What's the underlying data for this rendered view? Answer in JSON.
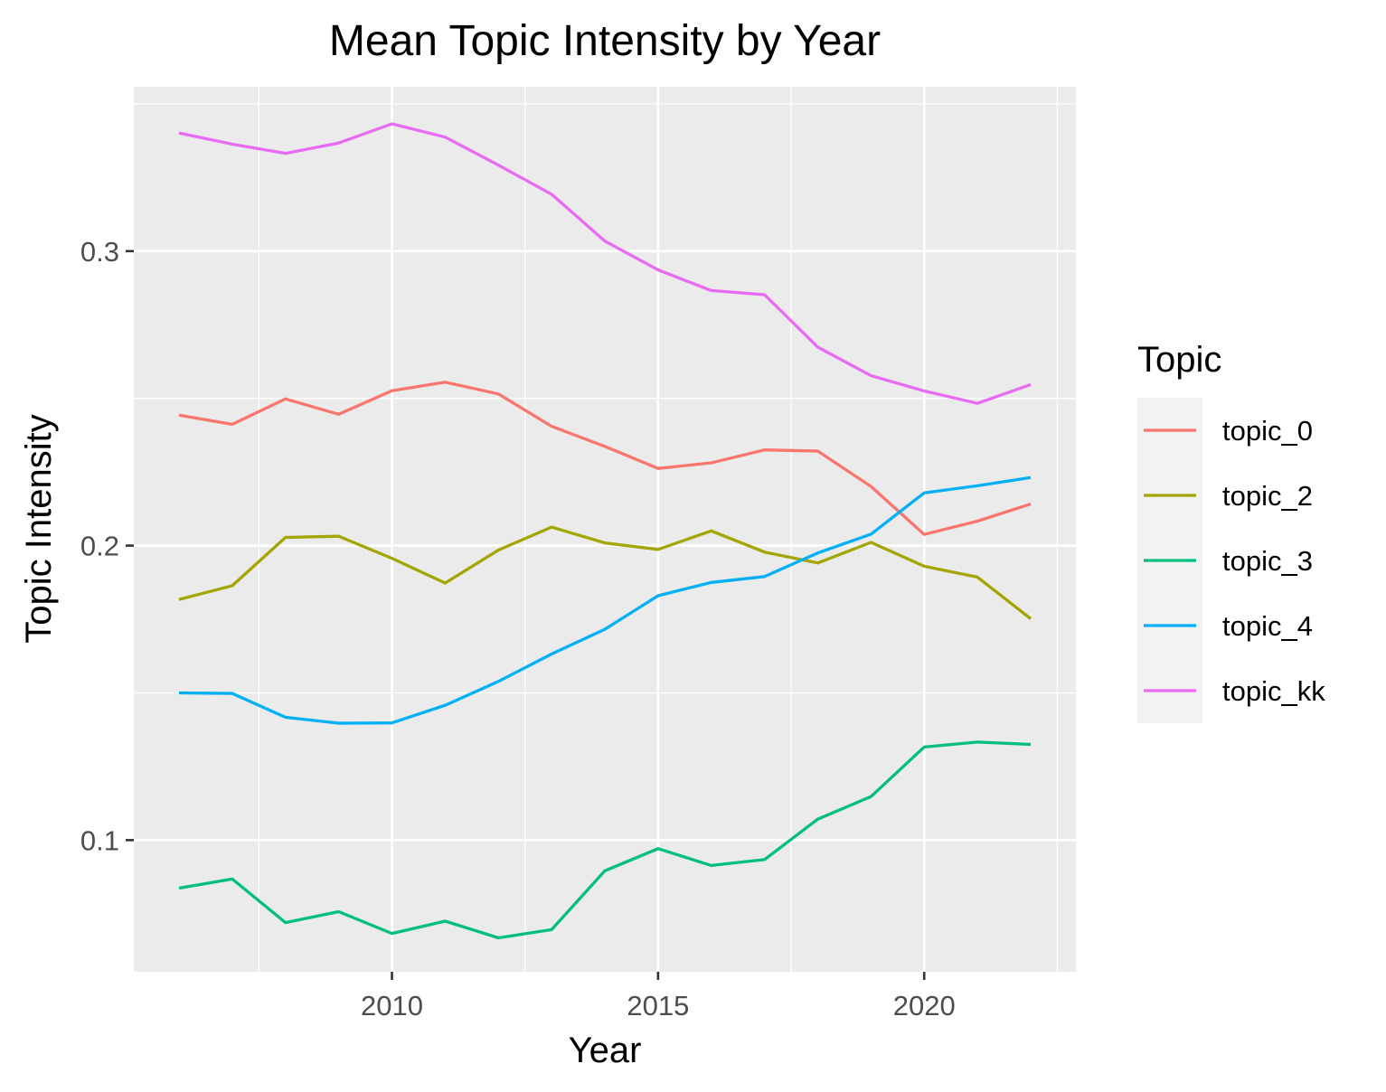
{
  "chart_data": {
    "type": "line",
    "title": "Mean Topic Intensity by Year",
    "xlabel": "Year",
    "ylabel": "Topic Intensity",
    "x": [
      2006,
      2007,
      2008,
      2009,
      2010,
      2011,
      2012,
      2013,
      2014,
      2015,
      2016,
      2017,
      2018,
      2019,
      2020,
      2021,
      2022
    ],
    "xlim": [
      2005.15,
      2022.85
    ],
    "ylim": [
      0.0553,
      0.3558
    ],
    "x_ticks": [
      2010,
      2015,
      2020
    ],
    "x_tick_labels": [
      "2010",
      "2015",
      "2020"
    ],
    "x_minor_ticks": [
      2007.5,
      2012.5,
      2017.5,
      2022.5
    ],
    "y_ticks": [
      0.1,
      0.2,
      0.3
    ],
    "y_tick_labels": [
      "0.1",
      "0.2",
      "0.3"
    ],
    "y_minor_ticks": [
      0.15,
      0.25,
      0.35
    ],
    "grid": true,
    "legend": {
      "title": "Topic",
      "position": "right"
    },
    "series": [
      {
        "name": "topic_0",
        "color": "#F8766D",
        "values": [
          0.2443,
          0.2412,
          0.2498,
          0.2446,
          0.2526,
          0.2555,
          0.2515,
          0.2405,
          0.2337,
          0.2262,
          0.2281,
          0.2325,
          0.2321,
          0.2201,
          0.2038,
          0.2083,
          0.2141
        ]
      },
      {
        "name": "topic_2",
        "color": "#A3A500",
        "values": [
          0.1817,
          0.1864,
          0.2028,
          0.2032,
          0.1957,
          0.1873,
          0.1985,
          0.2063,
          0.2009,
          0.1987,
          0.205,
          0.1978,
          0.1941,
          0.2011,
          0.193,
          0.1893,
          0.1752
        ]
      },
      {
        "name": "topic_3",
        "color": "#00BF7D",
        "values": [
          0.0837,
          0.0868,
          0.072,
          0.0757,
          0.0683,
          0.0725,
          0.0668,
          0.0696,
          0.0896,
          0.0971,
          0.0914,
          0.0934,
          0.1071,
          0.1148,
          0.1316,
          0.1333,
          0.1325
        ]
      },
      {
        "name": "topic_4",
        "color": "#00B0F6",
        "values": [
          0.15,
          0.1498,
          0.1417,
          0.1397,
          0.1398,
          0.1458,
          0.1539,
          0.1632,
          0.1716,
          0.183,
          0.1875,
          0.1895,
          0.1975,
          0.2039,
          0.2179,
          0.2203,
          0.2231
        ]
      },
      {
        "name": "topic_kk",
        "color": "#E76BF3",
        "values": [
          0.3401,
          0.3363,
          0.3332,
          0.3367,
          0.3432,
          0.3387,
          0.3292,
          0.3193,
          0.3034,
          0.2936,
          0.2866,
          0.2852,
          0.2674,
          0.2577,
          0.2525,
          0.2483,
          0.2547
        ]
      }
    ]
  }
}
